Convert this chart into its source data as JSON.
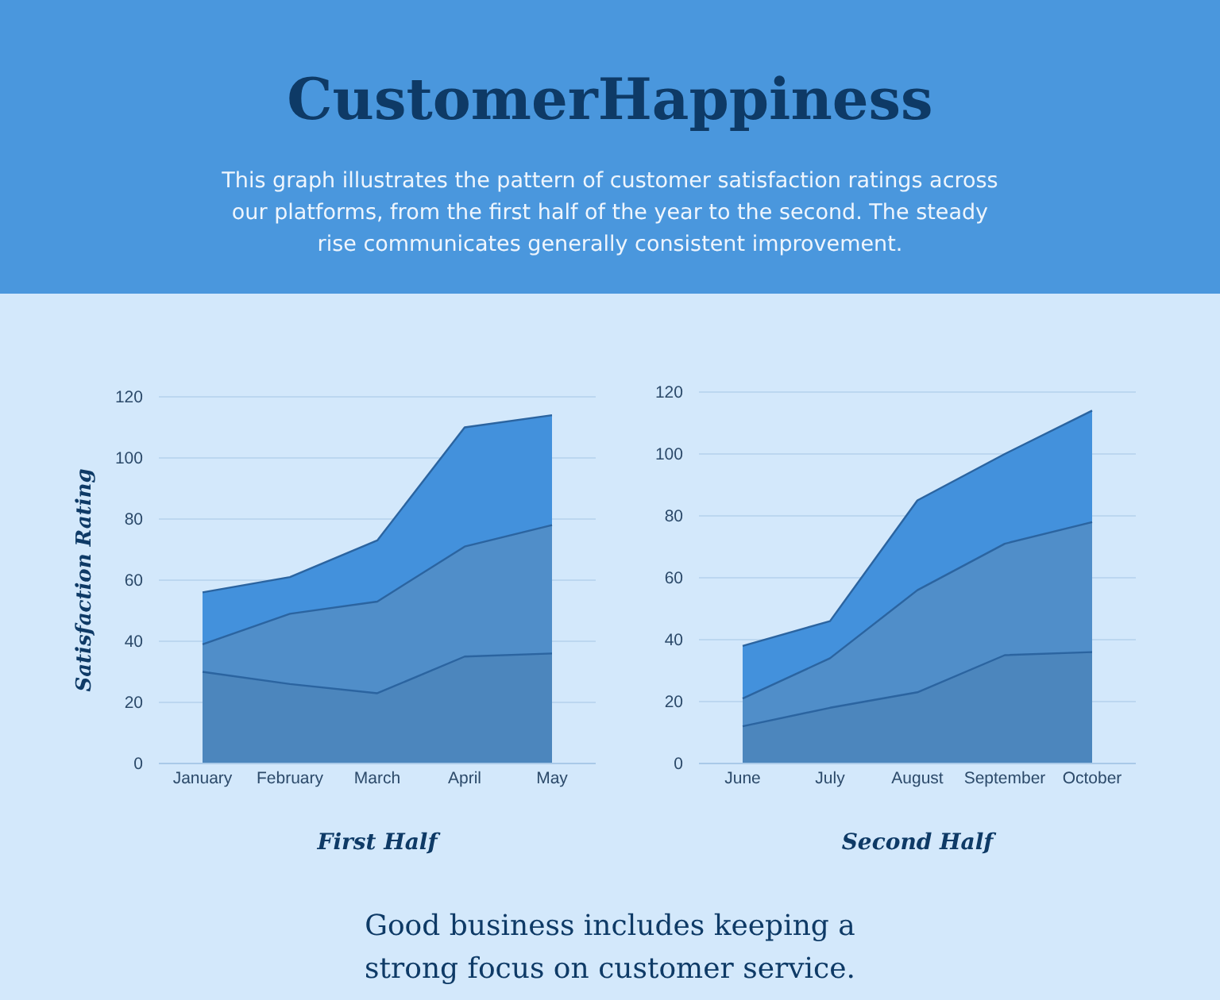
{
  "chart_data": [
    {
      "type": "area",
      "title": "CustomerHappiness",
      "subtitle": "This graph illustrates the pattern of customer satisfaction ratings across our platforms, from the first half of the year to the second. The steady rise communicates generally consistent improvement.",
      "xlabel": "First Half",
      "ylabel": "Satisfaction Rating",
      "categories": [
        "January",
        "February",
        "March",
        "April",
        "May"
      ],
      "series": [
        {
          "color": "#4391dc",
          "values": [
            56,
            61,
            73,
            110,
            114
          ]
        },
        {
          "color": "#508ec9",
          "values": [
            39,
            49,
            53,
            71,
            78
          ]
        },
        {
          "color": "#4c86bd",
          "values": [
            30,
            26,
            23,
            35,
            36
          ]
        }
      ],
      "ylim": [
        0,
        120
      ],
      "yticks": [
        0,
        20,
        40,
        60,
        80,
        100,
        120
      ],
      "grid": "y"
    },
    {
      "type": "area",
      "xlabel": "Second Half",
      "annotations": [
        "Good business includes keeping a strong focus on customer service."
      ],
      "categories": [
        "June",
        "July",
        "August",
        "September",
        "October"
      ],
      "series": [
        {
          "color": "#4391dc",
          "values": [
            38,
            46,
            85,
            100,
            114
          ]
        },
        {
          "color": "#508ec9",
          "values": [
            21,
            34,
            56,
            71,
            78
          ]
        },
        {
          "color": "#4c86bd",
          "values": [
            12,
            18,
            23,
            35,
            36
          ]
        }
      ],
      "ylim": [
        0,
        120
      ],
      "yticks": [
        0,
        20,
        40,
        60,
        80,
        100,
        120
      ],
      "grid": "y"
    }
  ]
}
